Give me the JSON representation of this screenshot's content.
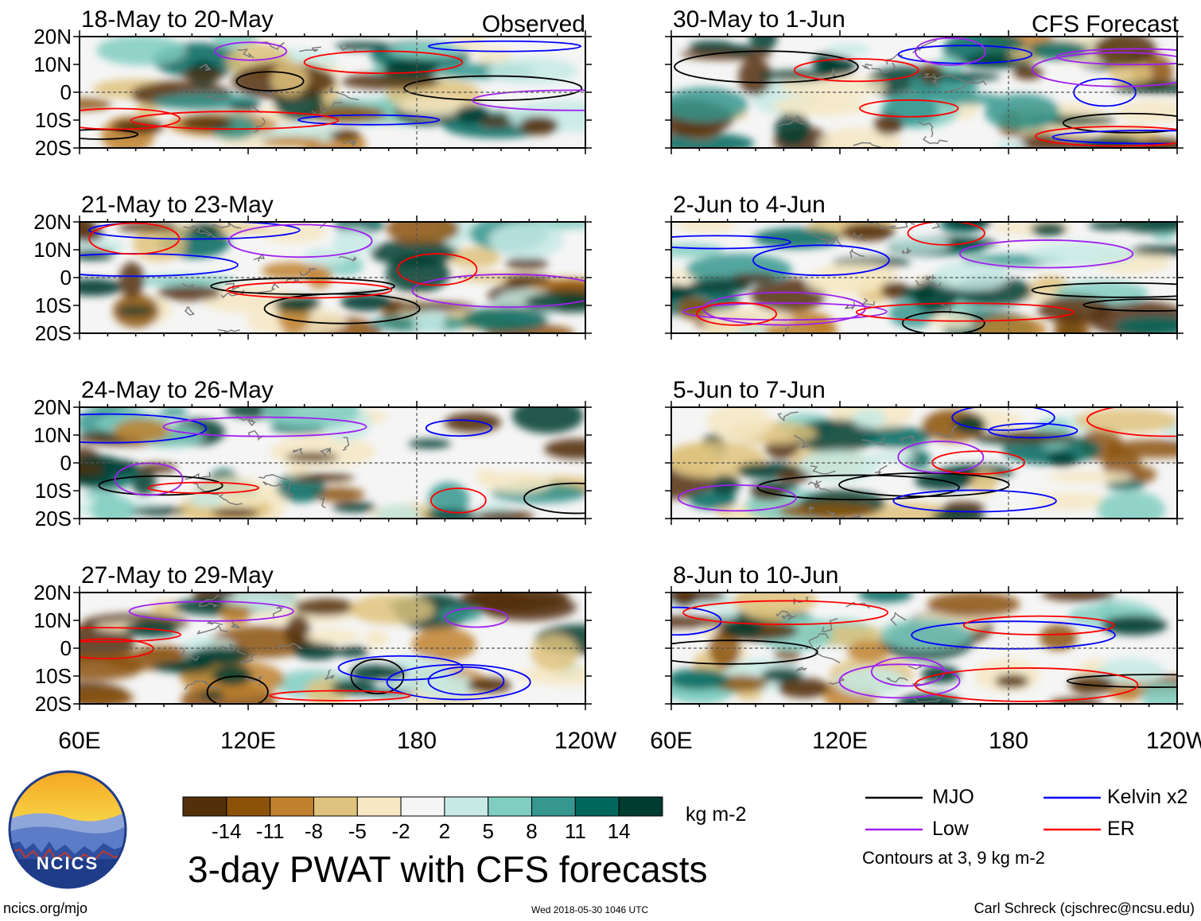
{
  "chart_data": {
    "type": "heatmap",
    "title": "3-day PWAT with CFS forecasts",
    "units": "kg m-2",
    "x_axis": {
      "range": [
        "60E",
        "120W"
      ],
      "ticks": [
        "60E",
        "120E",
        "180",
        "120W"
      ],
      "tick_lon": [
        60,
        120,
        180,
        240
      ],
      "lon_range": [
        60,
        240
      ],
      "grid_line_at": "180"
    },
    "y_axis": {
      "ticks": [
        "20N",
        "10N",
        "0",
        "10S",
        "20S"
      ],
      "tick_lat": [
        20,
        10,
        0,
        -10,
        -20
      ],
      "lat_range": [
        -20,
        20
      ],
      "grid_line_at": "0"
    },
    "columns": [
      {
        "header": "Observed",
        "panels": [
          "18-May to 20-May",
          "21-May to 23-May",
          "24-May to 26-May",
          "27-May to 29-May"
        ]
      },
      {
        "header": "CFS Forecast",
        "panels": [
          "30-May to 1-Jun",
          "2-Jun to 4-Jun",
          "5-Jun to 7-Jun",
          "8-Jun to 10-Jun"
        ]
      }
    ],
    "colorbar": {
      "labels": [
        "-14",
        "-11",
        "-8",
        "-5",
        "-2",
        "2",
        "5",
        "8",
        "11",
        "14"
      ],
      "colors": [
        "#54300a",
        "#8b5208",
        "#bf812d",
        "#dfc27d",
        "#f6e8c3",
        "#f5f5f5",
        "#c7eae5",
        "#80cdc1",
        "#35978f",
        "#01665e",
        "#003c30"
      ]
    },
    "contour_legend": [
      {
        "name": "MJO",
        "color": "#000000"
      },
      {
        "name": "Kelvin x2",
        "color": "#0000ff"
      },
      {
        "name": "Low",
        "color": "#a020f0"
      },
      {
        "name": "ER",
        "color": "#ff0000"
      }
    ],
    "contour_note": "Contours at 3, 9 kg m-2"
  },
  "footer": {
    "left": "ncics.org/mjo",
    "middle": "Wed 2018-05-30 1046 UTC",
    "right": "Carl Schreck (cjschrec@ncsu.edu)"
  },
  "logo": {
    "text": "NCICS"
  }
}
